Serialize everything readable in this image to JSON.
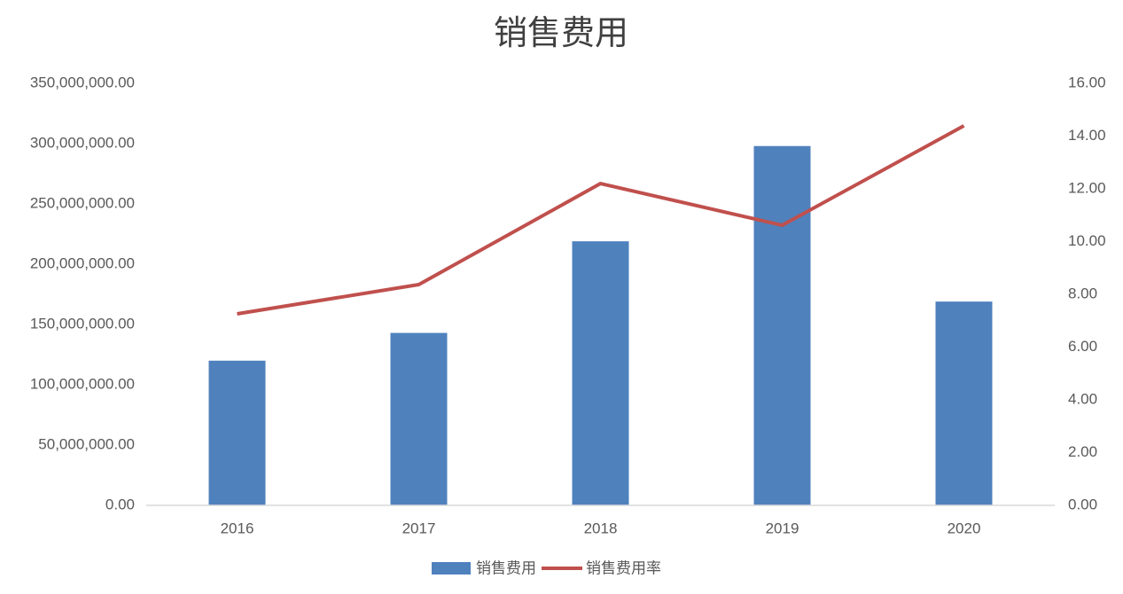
{
  "chart_data": {
    "type": "bar-line",
    "title": "销售费用",
    "categories": [
      "2016",
      "2017",
      "2018",
      "2019",
      "2020"
    ],
    "series": [
      {
        "name": "销售费用",
        "type": "bar",
        "color": "#4f81bd",
        "values": [
          120000000,
          143000000,
          219000000,
          298000000,
          169000000
        ]
      },
      {
        "name": "销售费用率",
        "type": "line",
        "axis": "y2",
        "color": "#c0504d",
        "values": [
          7.26,
          8.37,
          12.2,
          10.62,
          14.39
        ]
      }
    ],
    "ylim": [
      0,
      350000000
    ],
    "yticks": [
      {
        "value": 0,
        "label": "0.00"
      },
      {
        "value": 50000000,
        "label": "50,000,000.00"
      },
      {
        "value": 100000000,
        "label": "100,000,000.00"
      },
      {
        "value": 150000000,
        "label": "150,000,000.00"
      },
      {
        "value": 200000000,
        "label": "200,000,000.00"
      },
      {
        "value": 250000000,
        "label": "250,000,000.00"
      },
      {
        "value": 300000000,
        "label": "300,000,000.00"
      },
      {
        "value": 350000000,
        "label": "350,000,000.00"
      }
    ],
    "y2lim": [
      0,
      16
    ],
    "y2ticks": [
      {
        "value": 0,
        "label": "0.00"
      },
      {
        "value": 2,
        "label": "2.00"
      },
      {
        "value": 4,
        "label": "4.00"
      },
      {
        "value": 6,
        "label": "6.00"
      },
      {
        "value": 8,
        "label": "8.00"
      },
      {
        "value": 10,
        "label": "10.00"
      },
      {
        "value": 12,
        "label": "12.00"
      },
      {
        "value": 14,
        "label": "14.00"
      },
      {
        "value": 16,
        "label": "16.00"
      }
    ],
    "grid": false,
    "legend": "bottom"
  }
}
